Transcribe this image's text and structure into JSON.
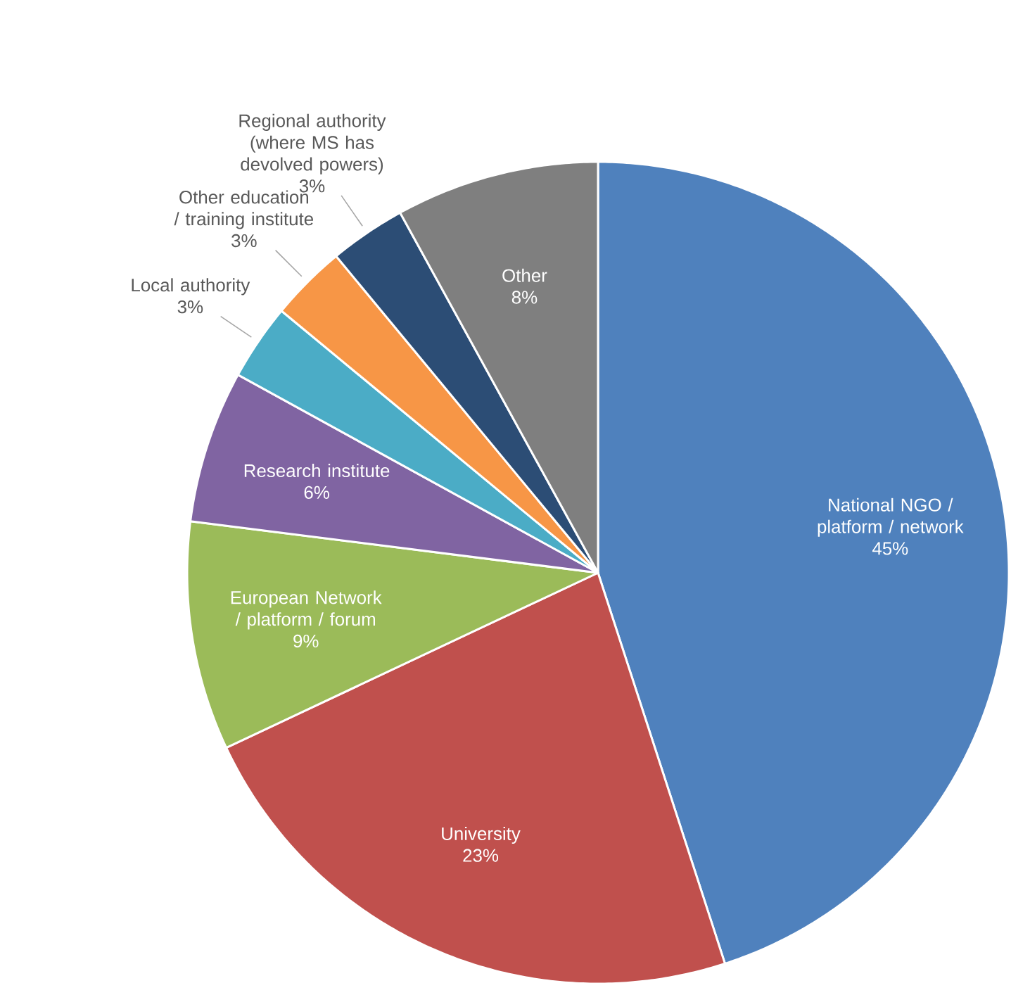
{
  "chart_data": {
    "type": "pie",
    "categories": [
      "National NGO / platform / network",
      "University",
      "European Network / platform / forum",
      "Research institute",
      "Local authority",
      "Other education / training institute",
      "Regional authority (where MS has devolved powers)",
      "Other"
    ],
    "values": [
      45,
      23,
      9,
      6,
      3,
      3,
      3,
      8
    ],
    "colors": [
      "#4f81bd",
      "#c0504d",
      "#9bbb59",
      "#8064a2",
      "#4bacc6",
      "#f79646",
      "#2c4d75",
      "#7f7f7f"
    ],
    "value_labels": [
      "45%",
      "23%",
      "9%",
      "6%",
      "3%",
      "3%",
      "3%",
      "8%"
    ]
  }
}
